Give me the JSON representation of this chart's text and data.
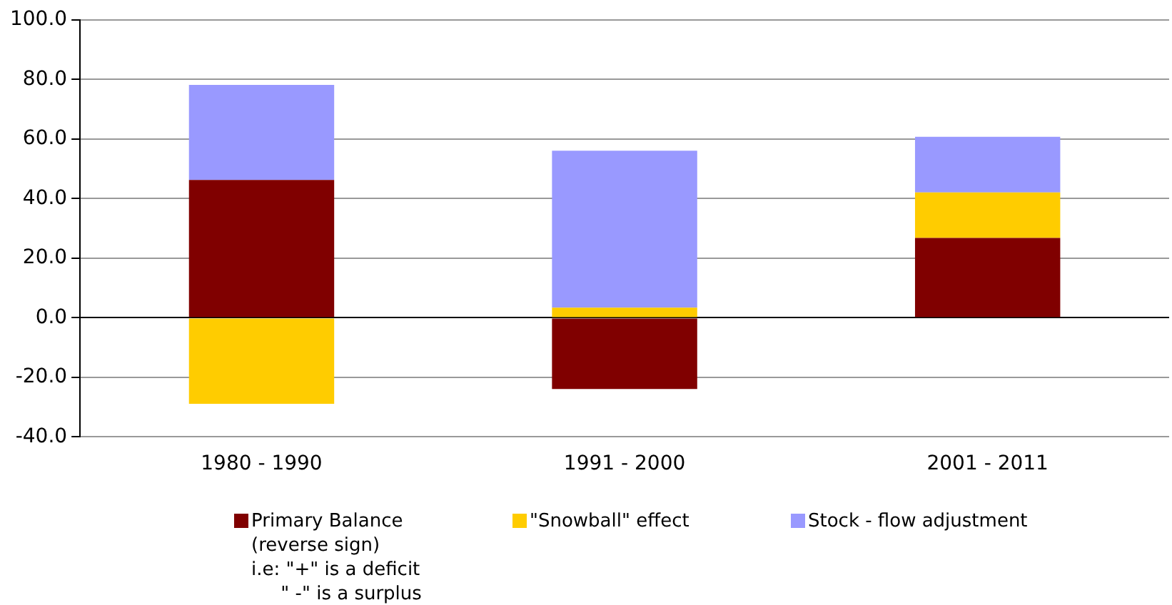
{
  "chart_data": {
    "type": "bar",
    "stacked": true,
    "categories": [
      "1980 - 1990",
      "1991 - 2000",
      "2001 - 2011"
    ],
    "series": [
      {
        "name": "Primary Balance\n(reverse sign)\ni.e: \"+\" is a deficit\n     \" -\" is a surplus",
        "color": "#800000",
        "values": [
          46.3,
          -23.9,
          26.8
        ]
      },
      {
        "name": "\"Snowball\" effect",
        "color": "#ffcc00",
        "values": [
          -28.9,
          3.4,
          15.3
        ]
      },
      {
        "name": "Stock - flow adjustment",
        "color": "#9999ff",
        "values": [
          31.9,
          52.7,
          18.7
        ]
      }
    ],
    "ylim": [
      -40,
      100
    ],
    "yticks": [
      {
        "value": -40,
        "label": "-40.0"
      },
      {
        "value": -20,
        "label": "-20.0"
      },
      {
        "value": 0,
        "label": "0.0"
      },
      {
        "value": 20,
        "label": "20.0"
      },
      {
        "value": 40,
        "label": "40.0"
      },
      {
        "value": 60,
        "label": "60.0"
      },
      {
        "value": 80,
        "label": "80.0"
      },
      {
        "value": 100,
        "label": "100.0"
      }
    ],
    "grid": "y",
    "legend": "bottom"
  }
}
